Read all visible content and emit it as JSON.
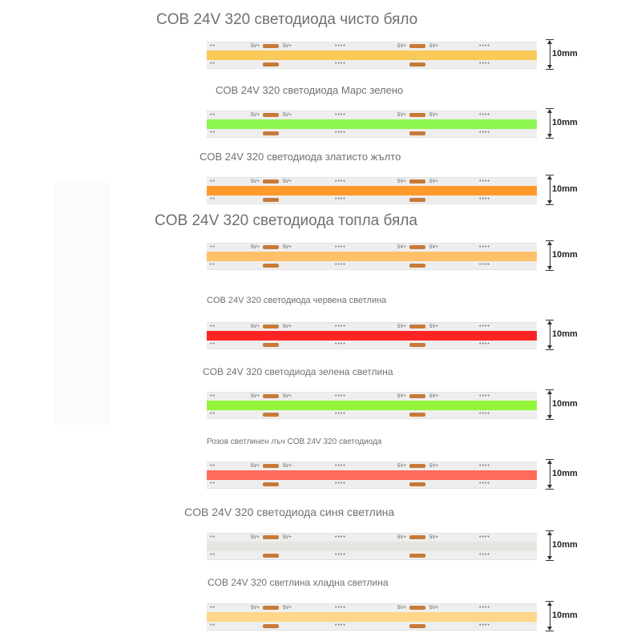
{
  "dimension_label": "10mm",
  "strip_markers": {
    "v_label": "5V+"
  },
  "variants": [
    {
      "title": "COB 24V 320 светодиода чисто бяло",
      "color": "#f9c95a"
    },
    {
      "title": "COB 24V 320 светодиода Марс зелено",
      "color": "#8cf550"
    },
    {
      "title": "COB 24V 320 светодиода златисто жълто",
      "color": "#ff9a2a"
    },
    {
      "title": "COB 24V 320 светодиода топла бяла",
      "color": "#ffc06a"
    },
    {
      "title": "COB 24V 320 светодиода червена светлина",
      "color": "#ff2424"
    },
    {
      "title": "COB 24V 320 светодиода зелена светлина",
      "color": "#92f53a"
    },
    {
      "title": "Розов светлинен лъч COB 24V 320 светодиода",
      "color": "#ff6a5a"
    },
    {
      "title": "COB 24V 320 светодиода синя светлина",
      "color": "#e6e6e0"
    },
    {
      "title": "COB 24V 320 светлина хладна светлина",
      "color": "#ffd68a"
    }
  ]
}
